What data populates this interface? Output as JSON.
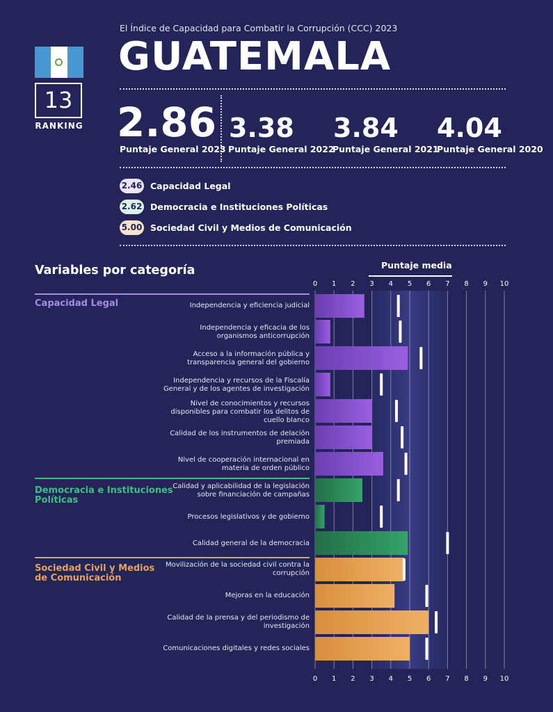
{
  "header": {
    "subtitle": "El Índice de Capacidad para Combatir la Corrupción (CCC) 2023",
    "country": "GUATEMALA",
    "ranking_value": "13",
    "ranking_label": "RANKING"
  },
  "scores": [
    {
      "value": "2.86",
      "label": "Puntaje General 2023"
    },
    {
      "value": "3.38",
      "label": "Puntaje General 2022"
    },
    {
      "value": "3.84",
      "label": "Puntaje General 2021"
    },
    {
      "value": "4.04",
      "label": "Puntaje General 2020"
    }
  ],
  "categories_summary": [
    {
      "value": "2.46",
      "label": "Capacidad Legal",
      "color": "#ece3fb"
    },
    {
      "value": "2.62",
      "label": "Democracia e Instituciones Políticas",
      "color": "#ddf3ea"
    },
    {
      "value": "5.00",
      "label": "Sociedad Civil y Medios de Comunicación",
      "color": "#f7e3cc"
    }
  ],
  "section_title": "Variables por categoría",
  "legend_label": "Puntaje media",
  "colors": {
    "background": "#232457",
    "legal": "#8b4fd0",
    "democracia": "#2e8f5c",
    "sociedad": "#e5a04e",
    "legal_text": "#a78bea",
    "democracia_text": "#3fbf82",
    "sociedad_text": "#e8a25c"
  },
  "chart_data": {
    "type": "bar",
    "orientation": "horizontal",
    "xlim": [
      0,
      10
    ],
    "ticks": [
      "0",
      "1",
      "2",
      "3",
      "4",
      "5",
      "6",
      "7",
      "8",
      "9",
      "10"
    ],
    "grid": true,
    "groups": [
      {
        "name": "Capacidad Legal",
        "color_key": "legal",
        "items": [
          {
            "label": "Independencia y eficiencia judicial",
            "value": 2.6,
            "mean": 4.4
          },
          {
            "label": "Independencia y eficacia de los organismos anticorrupción",
            "value": 0.8,
            "mean": 4.5
          },
          {
            "label": "Acceso a la información pública y transparencia general del gobierno",
            "value": 4.9,
            "mean": 5.6
          },
          {
            "label": "Independencia y recursos de la Fiscalía General y de los agentes de investigación",
            "value": 0.8,
            "mean": 3.5
          },
          {
            "label": "Nivel de conocimientos y recursos disponibles para combatir los delitos de cuello blanco",
            "value": 3.0,
            "mean": 4.3
          },
          {
            "label": "Calidad de los instrumentos de delación premiada",
            "value": 3.0,
            "mean": 4.6
          },
          {
            "label": "Nivel de cooperación internacional en materia de orden público",
            "value": 3.6,
            "mean": 4.8
          }
        ]
      },
      {
        "name": "Democracia e Instituciones Políticas",
        "color_key": "democracia",
        "items": [
          {
            "label": "Calidad y aplicabilidad de la legislación sobre financiación de campañas",
            "value": 2.5,
            "mean": 4.4
          },
          {
            "label": "Procesos legislativos y de gobierno",
            "value": 0.5,
            "mean": 3.5
          },
          {
            "label": "Calidad general de la democracia",
            "value": 4.9,
            "mean": 7.0
          }
        ]
      },
      {
        "name": "Sociedad Civil y Medios de Comunicación",
        "color_key": "sociedad",
        "items": [
          {
            "label": "Movilización de la sociedad civil contra la corrupción",
            "value": 4.7,
            "mean": 4.7
          },
          {
            "label": "Mejoras en la educación",
            "value": 4.2,
            "mean": 5.9
          },
          {
            "label": "Calidad de la prensa y del periodismo de investigación",
            "value": 6.0,
            "mean": 6.4
          },
          {
            "label": "Comunicaciones digitales y redes sociales",
            "value": 5.0,
            "mean": 5.9
          }
        ]
      }
    ]
  }
}
